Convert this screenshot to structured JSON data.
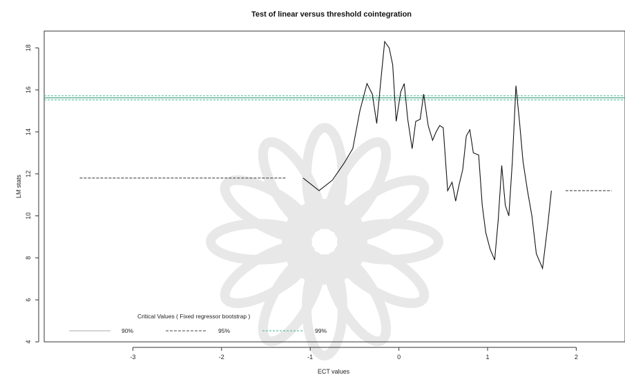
{
  "chart_data": {
    "type": "line",
    "title": "Test of linear versus threshold cointegration",
    "xlabel": "ECT values",
    "ylabel": "LM stats",
    "xlim": [
      -4.0,
      2.55
    ],
    "ylim": [
      4.0,
      18.8
    ],
    "xticks": [
      -3,
      -2,
      -1,
      0,
      1,
      2
    ],
    "yticks": [
      4,
      6,
      8,
      10,
      12,
      14,
      16,
      18
    ],
    "grid": false,
    "series": [
      {
        "name": "",
        "color": "#111111",
        "x": [
          -1.08,
          -0.9,
          -0.75,
          -0.62,
          -0.52,
          -0.44,
          -0.36,
          -0.3,
          -0.25,
          -0.2,
          -0.16,
          -0.11,
          -0.07,
          -0.03,
          0.02,
          0.06,
          0.1,
          0.15,
          0.19,
          0.24,
          0.28,
          0.33,
          0.38,
          0.42,
          0.46,
          0.5,
          0.55,
          0.6,
          0.64,
          0.68,
          0.72,
          0.76,
          0.8,
          0.84,
          0.9,
          0.94,
          0.98,
          1.03,
          1.08,
          1.12,
          1.16,
          1.2,
          1.24,
          1.28,
          1.32,
          1.36,
          1.4,
          1.45,
          1.5,
          1.55,
          1.62,
          1.68,
          1.72
        ],
        "y": [
          11.8,
          11.2,
          11.7,
          12.5,
          13.2,
          15.0,
          16.3,
          15.8,
          14.4,
          16.6,
          18.3,
          18.0,
          17.2,
          14.5,
          15.9,
          16.3,
          14.6,
          13.2,
          14.5,
          14.6,
          15.8,
          14.3,
          13.6,
          14.0,
          14.3,
          14.2,
          11.2,
          11.6,
          10.7,
          11.5,
          12.2,
          13.8,
          14.1,
          13.0,
          12.9,
          10.5,
          9.2,
          8.4,
          7.9,
          9.8,
          12.4,
          10.5,
          10.0,
          12.6,
          16.2,
          14.5,
          12.6,
          11.2,
          10.0,
          8.2,
          7.5,
          9.6,
          11.2
        ]
      }
    ],
    "reference_lines": [
      {
        "name": "95% left",
        "color": "#444444",
        "dash": "4,2",
        "x": [
          -3.6,
          -1.27
        ],
        "y": [
          11.8,
          11.8
        ]
      },
      {
        "name": "95% right",
        "color": "#444444",
        "dash": "4,2",
        "x": [
          1.88,
          2.4
        ],
        "y": [
          11.2,
          11.2
        ]
      },
      {
        "name": "99% top a",
        "color": "#5fbfa0",
        "dash": "3,2",
        "x": [
          -4.0,
          2.55
        ],
        "y": [
          15.72,
          15.72
        ]
      },
      {
        "name": "99% top b",
        "color": "#3a9f7f",
        "dash": "",
        "x": [
          -4.0,
          2.55
        ],
        "y": [
          15.62,
          15.62
        ]
      },
      {
        "name": "99% top c",
        "color": "#5fbfa0",
        "dash": "3,2",
        "x": [
          -4.0,
          2.55
        ],
        "y": [
          15.52,
          15.52
        ]
      }
    ],
    "legend": {
      "title": "Critical Values ( Fixed regressor bootstrap )",
      "placement": "bottom-left",
      "entries": [
        {
          "label": "90%",
          "color": "#bbbbbb",
          "dash": ""
        },
        {
          "label": "95%",
          "color": "#666666",
          "dash": "4,2"
        },
        {
          "label": "99%",
          "color": "#5fbfa0",
          "dash": "3,2"
        }
      ]
    }
  }
}
